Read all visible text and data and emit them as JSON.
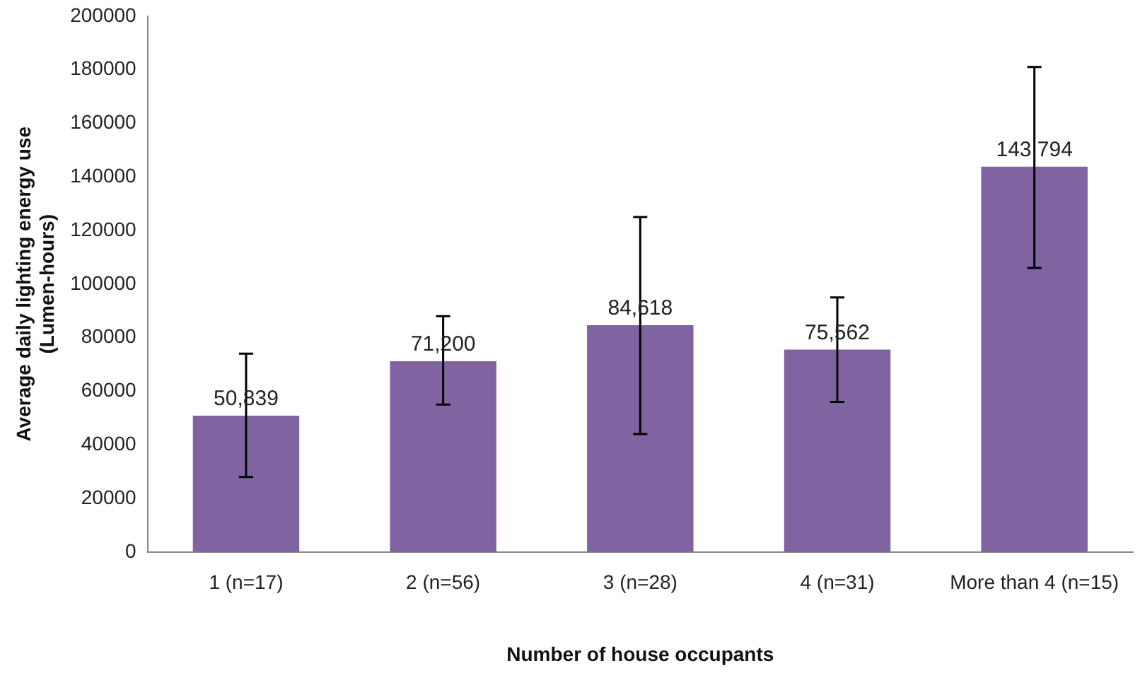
{
  "chart_data": {
    "type": "bar",
    "xlabel": "Number of house occupants",
    "ylabel": "Average daily lighting energy use\n(Lumen-hours)",
    "categories": [
      "1 (n=17)",
      "2 (n=56)",
      "3 (n=28)",
      "4 (n=31)",
      "More than 4 (n=15)"
    ],
    "values": [
      50839,
      71200,
      84618,
      75562,
      143794
    ],
    "value_labels": [
      "50,839",
      "71,200",
      "84,618",
      "75,562",
      "143,794"
    ],
    "errors": [
      [
        28000,
        74000
      ],
      [
        55000,
        88000
      ],
      [
        44000,
        125000
      ],
      [
        56000,
        95000
      ],
      [
        106000,
        181000
      ]
    ],
    "color": "#8064a2",
    "ylim": [
      0,
      200000
    ],
    "yticks": [
      0,
      20000,
      40000,
      60000,
      80000,
      100000,
      120000,
      140000,
      160000,
      180000,
      200000
    ],
    "grid": false,
    "legend": false
  }
}
